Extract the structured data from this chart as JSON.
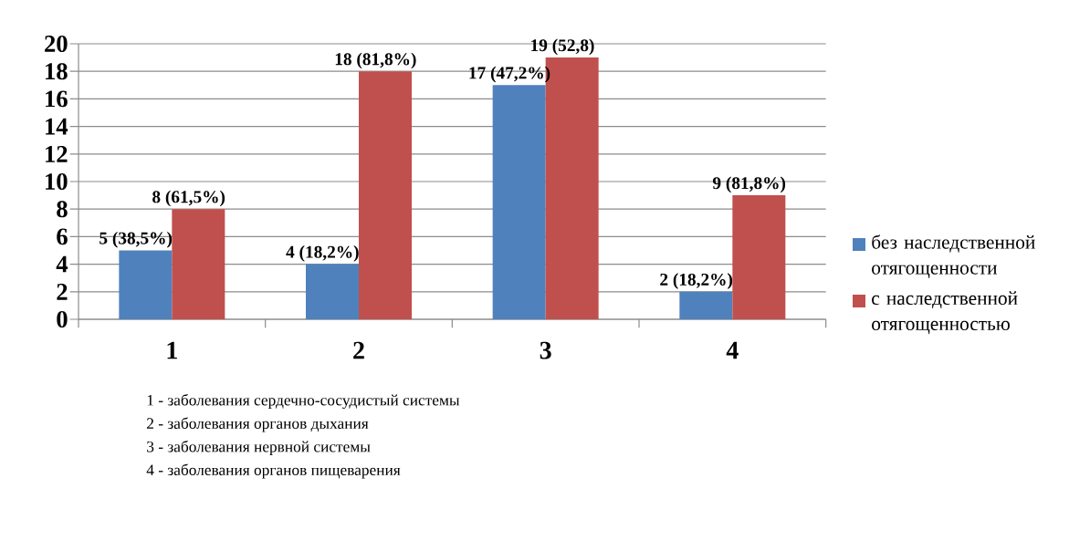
{
  "chart_data": {
    "type": "bar",
    "categories": [
      "1",
      "2",
      "3",
      "4"
    ],
    "series": [
      {
        "name": "без наследственной отягощенности",
        "color": "#4f81bd",
        "values": [
          5,
          4,
          17,
          2
        ],
        "value_labels": [
          "5 (38,5%)",
          "4 (18,2%)",
          "17 (47,2%)",
          "2 (18,2%)"
        ]
      },
      {
        "name": "с наследственной отягощенностью",
        "color": "#c0504d",
        "values": [
          8,
          18,
          19,
          9
        ],
        "value_labels": [
          "8 (61,5%)",
          "18 (81,8%)",
          "19 (52,8)",
          "9 (81,8%)"
        ]
      }
    ],
    "ylim": [
      0,
      20
    ],
    "yticks": [
      0,
      2,
      4,
      6,
      8,
      10,
      12,
      14,
      16,
      18,
      20
    ],
    "grid": "y",
    "legend": "right",
    "annotations": [
      "1 - заболевания сердечно-сосудистый системы",
      "2 - заболевания органов дыхания",
      "3 - заболевания нервной системы",
      "4 - заболевания органов пищеварения"
    ]
  }
}
